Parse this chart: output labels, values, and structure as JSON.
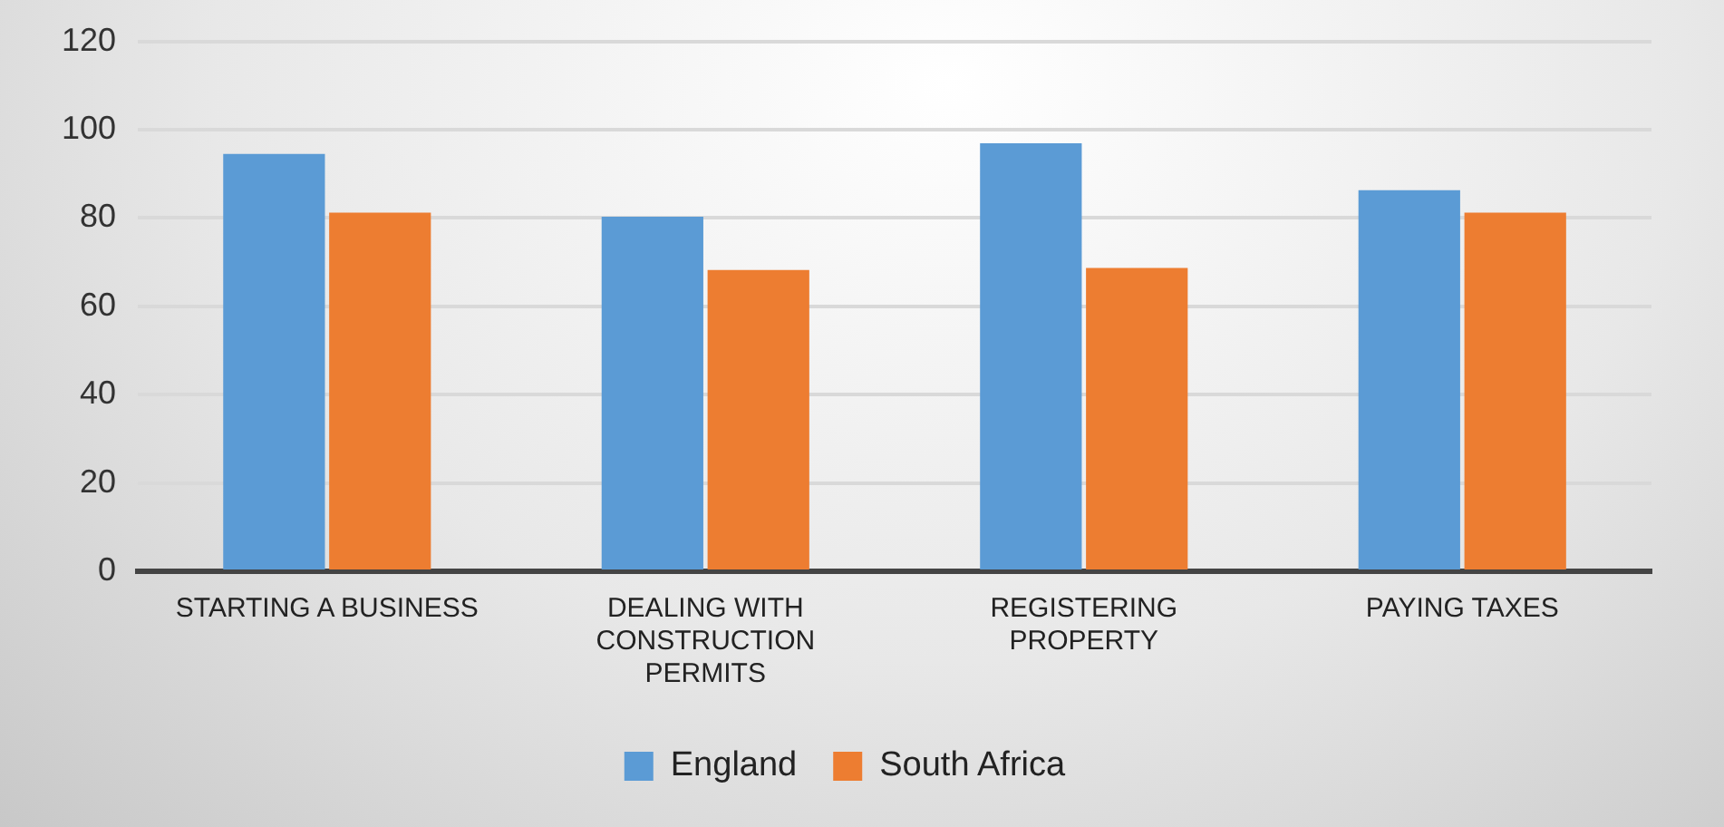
{
  "chart_data": {
    "type": "bar",
    "categories": [
      "STARTING A BUSINESS",
      "DEALING WITH CONSTRUCTION PERMITS",
      "REGISTERING PROPERTY",
      "PAYING TAXES"
    ],
    "series": [
      {
        "name": "England",
        "color": "#5b9bd5",
        "values": [
          94.5,
          80.3,
          96.9,
          86.3
        ]
      },
      {
        "name": "South Africa",
        "color": "#ed7d31",
        "values": [
          81.2,
          68.2,
          68.7,
          81.2
        ]
      }
    ],
    "ylim": [
      0,
      120
    ],
    "yticks": [
      0,
      20,
      40,
      60,
      80,
      100,
      120
    ],
    "grid": "y",
    "legend": "bottom"
  }
}
